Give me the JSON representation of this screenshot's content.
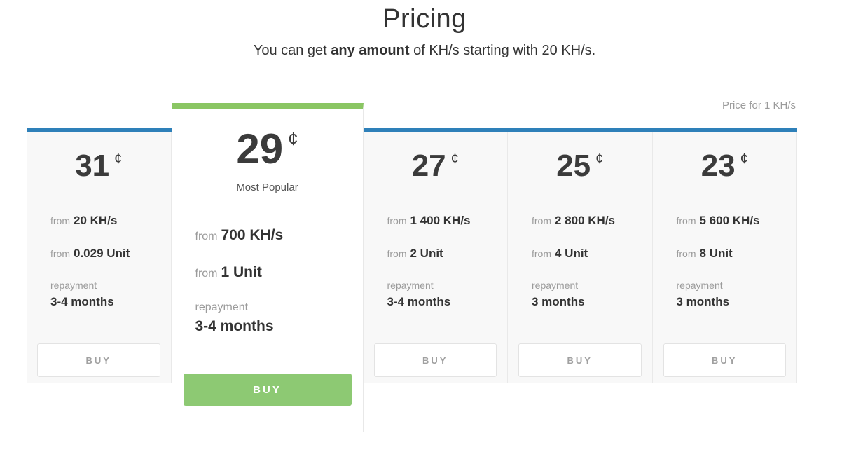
{
  "header": {
    "title": "Pricing",
    "subtitle": {
      "prefix": "You can get ",
      "bold": "any amount",
      "suffix": " of KH/s starting with 20 KH/s."
    }
  },
  "pricing": {
    "note": "Price for 1 KH/s",
    "plans": [
      {
        "price": "31",
        "currency": "¢",
        "badge": "",
        "khs_label": "from",
        "khs_value": "20 KH/s",
        "unit_label": "from",
        "unit_value": "0.029 Unit",
        "repayment_label": "repayment",
        "repayment_value": "3-4 months",
        "buy_label": "BUY"
      },
      {
        "price": "29",
        "currency": "¢",
        "badge": "Most Popular",
        "khs_label": "from",
        "khs_value": "700 KH/s",
        "unit_label": "from",
        "unit_value": "1 Unit",
        "repayment_label": "repayment",
        "repayment_value": "3-4 months",
        "buy_label": "BUY"
      },
      {
        "price": "27",
        "currency": "¢",
        "badge": "",
        "khs_label": "from",
        "khs_value": "1 400 KH/s",
        "unit_label": "from",
        "unit_value": "2 Unit",
        "repayment_label": "repayment",
        "repayment_value": "3-4 months",
        "buy_label": "BUY"
      },
      {
        "price": "25",
        "currency": "¢",
        "badge": "",
        "khs_label": "from",
        "khs_value": "2 800 KH/s",
        "unit_label": "from",
        "unit_value": "4 Unit",
        "repayment_label": "repayment",
        "repayment_value": "3 months",
        "buy_label": "BUY"
      },
      {
        "price": "23",
        "currency": "¢",
        "badge": "",
        "khs_label": "from",
        "khs_value": "5 600 KH/s",
        "unit_label": "from",
        "unit_value": "8 Unit",
        "repayment_label": "repayment",
        "repayment_value": "3 months",
        "buy_label": "BUY"
      }
    ]
  },
  "colors": {
    "accent_blue": "#2e80b9",
    "accent_green": "#8ac663",
    "button_green": "#8dc973",
    "text_dark": "#333333",
    "text_gray": "#9b9b9b",
    "card_bg": "#f8f8f8"
  }
}
